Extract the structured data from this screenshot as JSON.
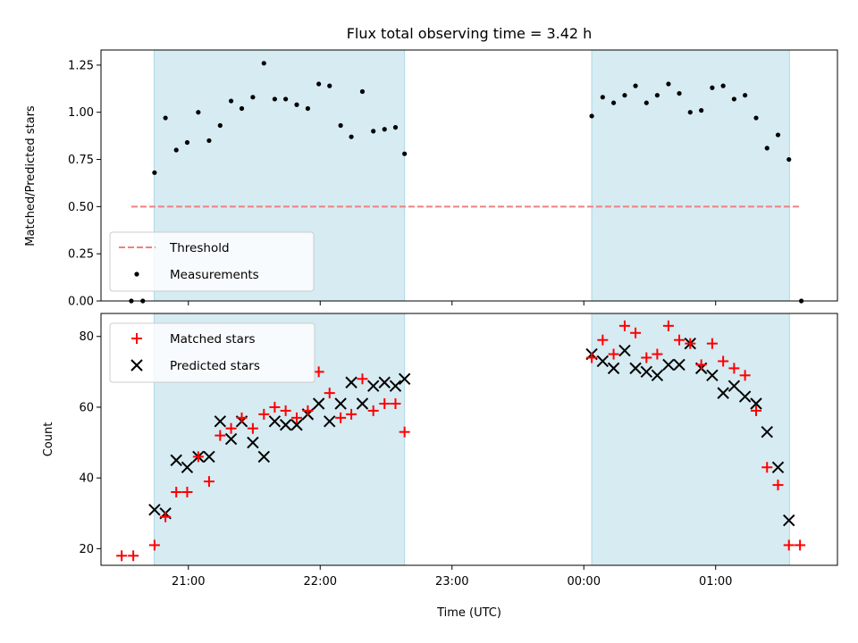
{
  "chart_data": [
    {
      "type": "scatter",
      "title": "Flux total observing time = 3.42 h",
      "xlabel": "",
      "ylabel": "Matched/Predicted stars",
      "x_tick_labels": [],
      "y_tick_labels": [
        "0.00",
        "0.25",
        "0.50",
        "0.75",
        "1.00",
        "1.25"
      ],
      "ylim": [
        0.0,
        1.33
      ],
      "xlim": [
        20.337,
        25.924
      ],
      "grid": false,
      "legend_position": "lower-left",
      "threshold": {
        "name": "Threshold",
        "value": 0.5,
        "color": "#f08080",
        "x_start": 20.567,
        "x_end": 25.65
      },
      "shaded_intervals": [
        [
          20.74,
          22.64
        ],
        [
          24.06,
          25.56
        ]
      ],
      "shade_color": "#add8e6",
      "series": [
        {
          "name": "Measurements",
          "marker": "dot",
          "color": "#000000",
          "x": [
            20.567,
            20.654,
            20.743,
            20.826,
            20.908,
            20.991,
            21.075,
            21.157,
            21.241,
            21.324,
            21.405,
            21.489,
            21.573,
            21.655,
            21.738,
            21.822,
            21.906,
            21.989,
            22.071,
            22.155,
            22.236,
            22.32,
            22.403,
            22.488,
            22.571,
            22.64,
            24.06,
            24.143,
            24.226,
            24.31,
            24.392,
            24.475,
            24.557,
            24.642,
            24.724,
            24.807,
            24.891,
            24.974,
            25.057,
            25.14,
            25.223,
            25.307,
            25.39,
            25.473,
            25.556,
            25.65
          ],
          "y": [
            0.0,
            0.0,
            0.68,
            0.97,
            0.8,
            0.84,
            1.0,
            0.85,
            0.93,
            1.06,
            1.02,
            1.08,
            1.26,
            1.07,
            1.07,
            1.04,
            1.02,
            1.15,
            1.14,
            0.93,
            0.87,
            1.11,
            0.9,
            0.91,
            0.92,
            0.78,
            0.98,
            1.08,
            1.05,
            1.09,
            1.14,
            1.05,
            1.09,
            1.15,
            1.1,
            1.0,
            1.01,
            1.13,
            1.14,
            1.07,
            1.09,
            0.97,
            0.81,
            0.88,
            0.75,
            0.0
          ]
        }
      ]
    },
    {
      "type": "scatter",
      "title": "",
      "xlabel": "Time (UTC)",
      "ylabel": "Count",
      "x_tick_labels": [
        "21:00",
        "22:00",
        "23:00",
        "00:00",
        "01:00"
      ],
      "x_ticks": [
        21,
        22,
        23,
        24,
        25
      ],
      "y_tick_labels": [
        "20",
        "40",
        "60",
        "80"
      ],
      "y_ticks": [
        20,
        40,
        60,
        80
      ],
      "ylim": [
        15.3,
        86.5
      ],
      "xlim": [
        20.337,
        25.924
      ],
      "grid": false,
      "legend_position": "upper-left",
      "shaded_intervals": [
        [
          20.74,
          22.64
        ],
        [
          24.06,
          25.56
        ]
      ],
      "shade_color": "#add8e6",
      "series": [
        {
          "name": "Matched stars",
          "marker": "plus",
          "color": "#ff0000",
          "x": [
            20.494,
            20.582,
            20.743,
            20.826,
            20.908,
            20.991,
            21.075,
            21.157,
            21.241,
            21.324,
            21.405,
            21.489,
            21.573,
            21.655,
            21.738,
            21.822,
            21.906,
            21.989,
            22.071,
            22.155,
            22.236,
            22.32,
            22.403,
            22.488,
            22.571,
            22.64,
            24.06,
            24.143,
            24.226,
            24.31,
            24.392,
            24.475,
            24.557,
            24.642,
            24.724,
            24.807,
            24.891,
            24.974,
            25.057,
            25.14,
            25.223,
            25.307,
            25.39,
            25.473,
            25.556,
            25.64
          ],
          "y": [
            18,
            18,
            21,
            29,
            36,
            36,
            46,
            39,
            52,
            54,
            57,
            54,
            58,
            60,
            59,
            57,
            59,
            70,
            64,
            57,
            58,
            68,
            59,
            61,
            61,
            53,
            74,
            79,
            75,
            83,
            81,
            74,
            75,
            83,
            79,
            78,
            72,
            78,
            73,
            71,
            69,
            59,
            43,
            38,
            21,
            21
          ]
        },
        {
          "name": "Predicted stars",
          "marker": "x",
          "color": "#000000",
          "x": [
            20.743,
            20.826,
            20.908,
            20.991,
            21.075,
            21.157,
            21.241,
            21.324,
            21.405,
            21.489,
            21.573,
            21.655,
            21.738,
            21.822,
            21.906,
            21.989,
            22.071,
            22.155,
            22.236,
            22.32,
            22.403,
            22.488,
            22.571,
            22.64,
            24.06,
            24.143,
            24.226,
            24.31,
            24.392,
            24.475,
            24.557,
            24.642,
            24.724,
            24.807,
            24.891,
            24.974,
            25.057,
            25.14,
            25.223,
            25.307,
            25.39,
            25.473,
            25.556
          ],
          "y": [
            31,
            30,
            45,
            43,
            46,
            46,
            56,
            51,
            56,
            50,
            46,
            56,
            55,
            55,
            58,
            61,
            56,
            61,
            67,
            61,
            66,
            67,
            66,
            68,
            75,
            73,
            71,
            76,
            71,
            70,
            69,
            72,
            72,
            78,
            71,
            69,
            64,
            66,
            63,
            61,
            53,
            43,
            28
          ]
        }
      ]
    }
  ]
}
